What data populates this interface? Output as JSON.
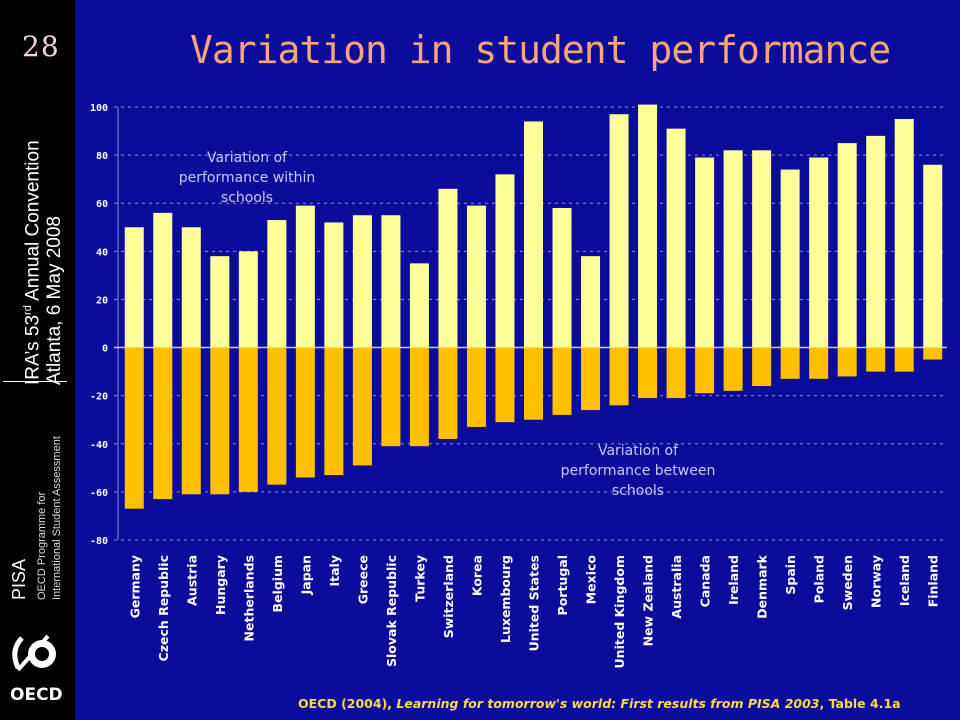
{
  "slide": {
    "page_number": "28",
    "title": "Variation in student performance",
    "conference_line1": "IRA's 53rd Annual Convention",
    "conference_line2": "Atlanta, 6 May 2008",
    "brand": "PISA",
    "programme_line1": "OECD Programme for",
    "programme_line2": "International Student Assessment",
    "logo_text": "OECD",
    "source_prefix": "OECD (2004), ",
    "source_title": "Learning for tomorrow's world: First results from PISA 2003",
    "source_suffix": ", Table 4.1a"
  },
  "colors": {
    "background": "#0c0c9a",
    "within_bar": "#ffff99",
    "between_bar": "#ffc000",
    "title": "#ffa37a",
    "grid": "#8a8ad0"
  },
  "chart_data": {
    "type": "bar",
    "categories": [
      "Germany",
      "Czech Republic",
      "Austria",
      "Hungary",
      "Netherlands",
      "Belgium",
      "Japan",
      "Italy",
      "Greece",
      "Slovak Republic",
      "Turkey",
      "Switzerland",
      "Korea",
      "Luxembourg",
      "United States",
      "Portugal",
      "Mexico",
      "United Kingdom",
      "New Zealand",
      "Australia",
      "Canada",
      "Ireland",
      "Denmark",
      "Spain",
      "Poland",
      "Sweden",
      "Norway",
      "Iceland",
      "Finland"
    ],
    "series": [
      {
        "values": [
          50,
          56,
          50,
          38,
          40,
          53,
          59,
          52,
          55,
          55,
          35,
          66,
          59,
          72,
          94,
          58,
          38,
          97,
          101,
          91,
          79,
          82,
          82,
          74,
          79,
          85,
          88,
          95,
          76
        ]
      },
      {
        "values": [
          -67,
          -63,
          -61,
          -61,
          -60,
          -57,
          -54,
          -53,
          -49,
          -41,
          -41,
          -38,
          -33,
          -31,
          -30,
          -28,
          -26,
          -24,
          -21,
          -21,
          -19,
          -18,
          -16,
          -13,
          -13,
          -12,
          -10,
          -10,
          -5
        ]
      }
    ],
    "ylim": [
      -80,
      100
    ],
    "yticks": [
      100,
      80,
      60,
      40,
      20,
      0,
      -20,
      -40,
      -60,
      -80
    ],
    "grid": true,
    "annotations": [
      {
        "text": "Variation of performance within schools",
        "lines": [
          "Variation of",
          "performance within",
          "schools"
        ]
      },
      {
        "text": "Variation of performance between schools",
        "lines": [
          "Variation of",
          "performance between",
          "schools"
        ]
      }
    ]
  }
}
